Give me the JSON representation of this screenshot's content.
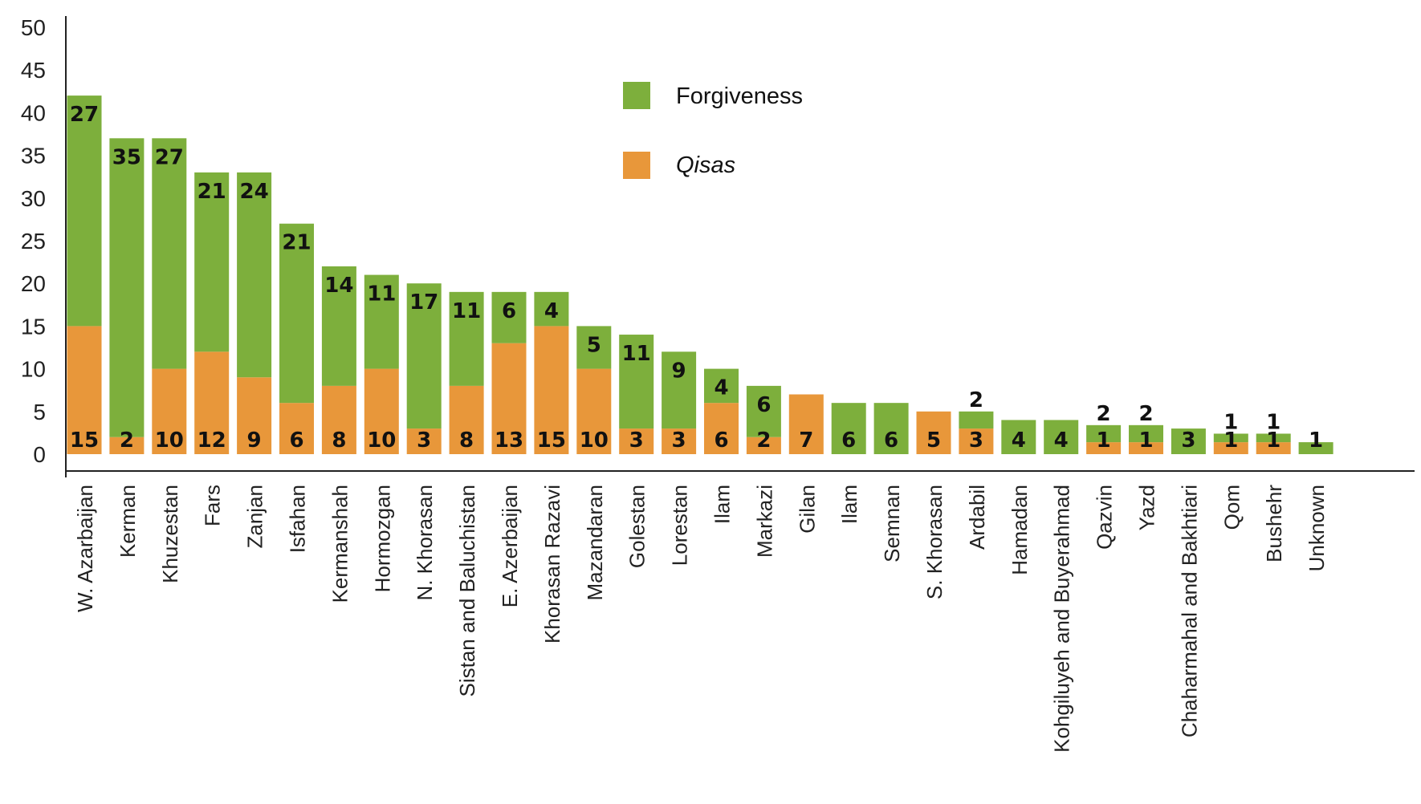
{
  "chart_data": {
    "type": "bar",
    "stacked": true,
    "title": "",
    "xlabel": "",
    "ylabel": "",
    "ylim": [
      0,
      50
    ],
    "yticks": [
      0,
      5,
      10,
      15,
      20,
      25,
      30,
      35,
      40,
      45,
      50
    ],
    "categories": [
      "W. Azarbaijan",
      "Kerman",
      "Khuzestan",
      "Fars",
      "Zanjan",
      "Isfahan",
      "Kermanshah",
      "Hormozgan",
      "N. Khorasan",
      "Sistan and Baluchistan",
      "E. Azerbaijan",
      "Khorasan Razavi",
      "Mazandaran",
      "Golestan",
      "Lorestan",
      "Ilam",
      "Markazi",
      "Gilan",
      "Ilam",
      "Semnan",
      "S. Khorasan",
      "Ardabil",
      "Hamadan",
      "Kohgiluyeh and Buyerahmad",
      "Qazvin",
      "Yazd",
      "Chaharmahal and Bakhtiari",
      "Qom",
      "Bushehr",
      "Unknown"
    ],
    "series": [
      {
        "name": "Qisas",
        "color": "#e8973a",
        "values": [
          15,
          2,
          10,
          12,
          9,
          6,
          8,
          10,
          3,
          8,
          13,
          15,
          10,
          3,
          3,
          6,
          2,
          7,
          null,
          null,
          5,
          3,
          null,
          null,
          1,
          1,
          null,
          1,
          1,
          null
        ],
        "labels": [
          "15",
          "2",
          "10",
          "12",
          "9",
          "6",
          "8",
          "10",
          "3",
          "8",
          "13",
          "15",
          "10",
          "3",
          "3",
          "6",
          "2",
          "7",
          "",
          "",
          "5",
          "3",
          "",
          "",
          "1",
          "1",
          "",
          "1",
          "1",
          ""
        ]
      },
      {
        "name": "Forgiveness",
        "color": "#7daf3c",
        "values": [
          27,
          35,
          27,
          21,
          24,
          21,
          14,
          11,
          17,
          11,
          6,
          4,
          5,
          11,
          9,
          4,
          6,
          null,
          6,
          6,
          null,
          2,
          4,
          4,
          2,
          2,
          3,
          1,
          1,
          1
        ],
        "labels": [
          "27",
          "35",
          "27",
          "21",
          "24",
          "21",
          "14",
          "11",
          "17",
          "11",
          "6",
          "4",
          "5",
          "11",
          "9",
          "4",
          "6",
          "",
          "6",
          "6",
          "",
          "2",
          "4",
          "4",
          "2",
          "2",
          "3",
          "1",
          "1",
          "1"
        ]
      }
    ],
    "legend": {
      "position": "top-center",
      "items": [
        {
          "label": "Forgiveness",
          "color": "#7daf3c",
          "italic": false
        },
        {
          "label": "Qisas",
          "color": "#e8973a",
          "italic": true
        }
      ]
    },
    "grid": false
  }
}
